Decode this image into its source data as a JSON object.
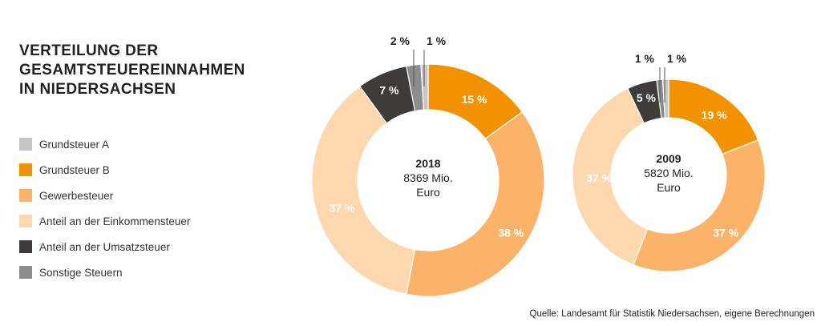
{
  "title": "VERTEILUNG DER\nGESAMTSTEUEREINNAHMEN\nIN NIEDERSACHSEN",
  "source": "Quelle: Landesamt für Statistik Niedersachsen, eigene Berechnungen",
  "legend": [
    {
      "label": "Grundsteuer A",
      "color": "#c6c6c6"
    },
    {
      "label": "Grundsteuer B",
      "color": "#f39200"
    },
    {
      "label": "Gewerbesteuer",
      "color": "#fbb36a"
    },
    {
      "label": "Anteil an der Einkommensteuer",
      "color": "#fdd7ae"
    },
    {
      "label": "Anteil an der Umsatzsteuer",
      "color": "#3f3b38"
    },
    {
      "label": "Sonstige Steuern",
      "color": "#8c8c8c"
    }
  ],
  "chart_data": [
    {
      "type": "pie",
      "title": "2018",
      "center_lines": [
        "2018",
        "8369 Mio.",
        "Euro"
      ],
      "categories": [
        "Grundsteuer A",
        "Grundsteuer B",
        "Gewerbesteuer",
        "Anteil an der Einkommensteuer",
        "Anteil an der Umsatzsteuer",
        "Sonstige Steuern"
      ],
      "values": [
        1,
        15,
        38,
        37,
        7,
        2
      ],
      "labels": [
        "1 %",
        "15 %",
        "38 %",
        "37 %",
        "7 %",
        "2 %"
      ]
    },
    {
      "type": "pie",
      "title": "2009",
      "center_lines": [
        "2009",
        "5820 Mio.",
        "Euro"
      ],
      "categories": [
        "Grundsteuer A",
        "Grundsteuer B",
        "Gewerbesteuer",
        "Anteil an der Einkommensteuer",
        "Anteil an der Umsatzsteuer",
        "Sonstige Steuern"
      ],
      "values": [
        1,
        19,
        37,
        37,
        5,
        1
      ],
      "labels": [
        "1 %",
        "19 %",
        "37 %",
        "37 %",
        "5 %",
        "1 %"
      ]
    }
  ]
}
